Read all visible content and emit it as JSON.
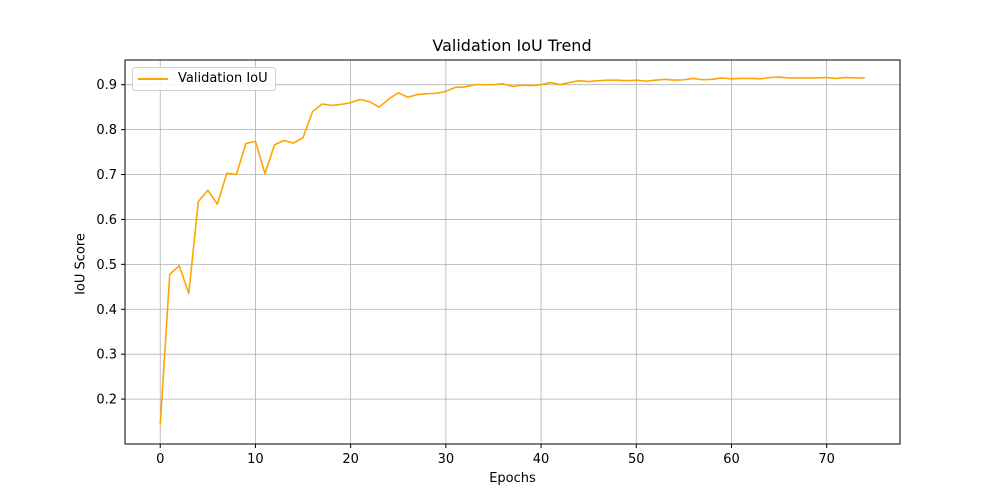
{
  "chart_data": {
    "type": "line",
    "title": "Validation IoU Trend",
    "xlabel": "Epochs",
    "ylabel": "IoU Score",
    "xlim": [
      -3.7,
      77.7
    ],
    "ylim": [
      0.1,
      0.955
    ],
    "xticks": [
      0,
      10,
      20,
      30,
      40,
      50,
      60,
      70
    ],
    "yticks": [
      0.2,
      0.3,
      0.4,
      0.5,
      0.6,
      0.7,
      0.8,
      0.9
    ],
    "grid": true,
    "legend_position": "top-left",
    "colors": {
      "line": "#ffa500",
      "grid": "#b0b0b0",
      "axis": "#000000"
    },
    "series": [
      {
        "name": "Validation IoU",
        "x": [
          0,
          1,
          2,
          3,
          4,
          5,
          6,
          7,
          8,
          9,
          10,
          11,
          12,
          13,
          14,
          15,
          16,
          17,
          18,
          19,
          20,
          21,
          22,
          23,
          24,
          25,
          26,
          27,
          28,
          29,
          30,
          31,
          32,
          33,
          34,
          35,
          36,
          37,
          38,
          39,
          40,
          41,
          42,
          43,
          44,
          45,
          46,
          47,
          48,
          49,
          50,
          51,
          52,
          53,
          54,
          55,
          56,
          57,
          58,
          59,
          60,
          61,
          62,
          63,
          64,
          65,
          66,
          67,
          68,
          69,
          70,
          71,
          72,
          73,
          74
        ],
        "values": [
          0.143,
          0.478,
          0.497,
          0.435,
          0.64,
          0.665,
          0.634,
          0.703,
          0.7,
          0.769,
          0.774,
          0.702,
          0.766,
          0.776,
          0.77,
          0.782,
          0.84,
          0.857,
          0.854,
          0.856,
          0.86,
          0.867,
          0.862,
          0.85,
          0.868,
          0.882,
          0.872,
          0.878,
          0.88,
          0.881,
          0.885,
          0.894,
          0.895,
          0.9,
          0.9,
          0.9,
          0.902,
          0.896,
          0.899,
          0.898,
          0.9,
          0.905,
          0.9,
          0.905,
          0.909,
          0.907,
          0.909,
          0.91,
          0.91,
          0.909,
          0.91,
          0.908,
          0.91,
          0.912,
          0.91,
          0.911,
          0.914,
          0.911,
          0.912,
          0.915,
          0.913,
          0.914,
          0.914,
          0.913,
          0.916,
          0.917,
          0.915,
          0.915,
          0.915,
          0.915,
          0.916,
          0.914,
          0.916,
          0.915,
          0.915
        ]
      }
    ]
  }
}
